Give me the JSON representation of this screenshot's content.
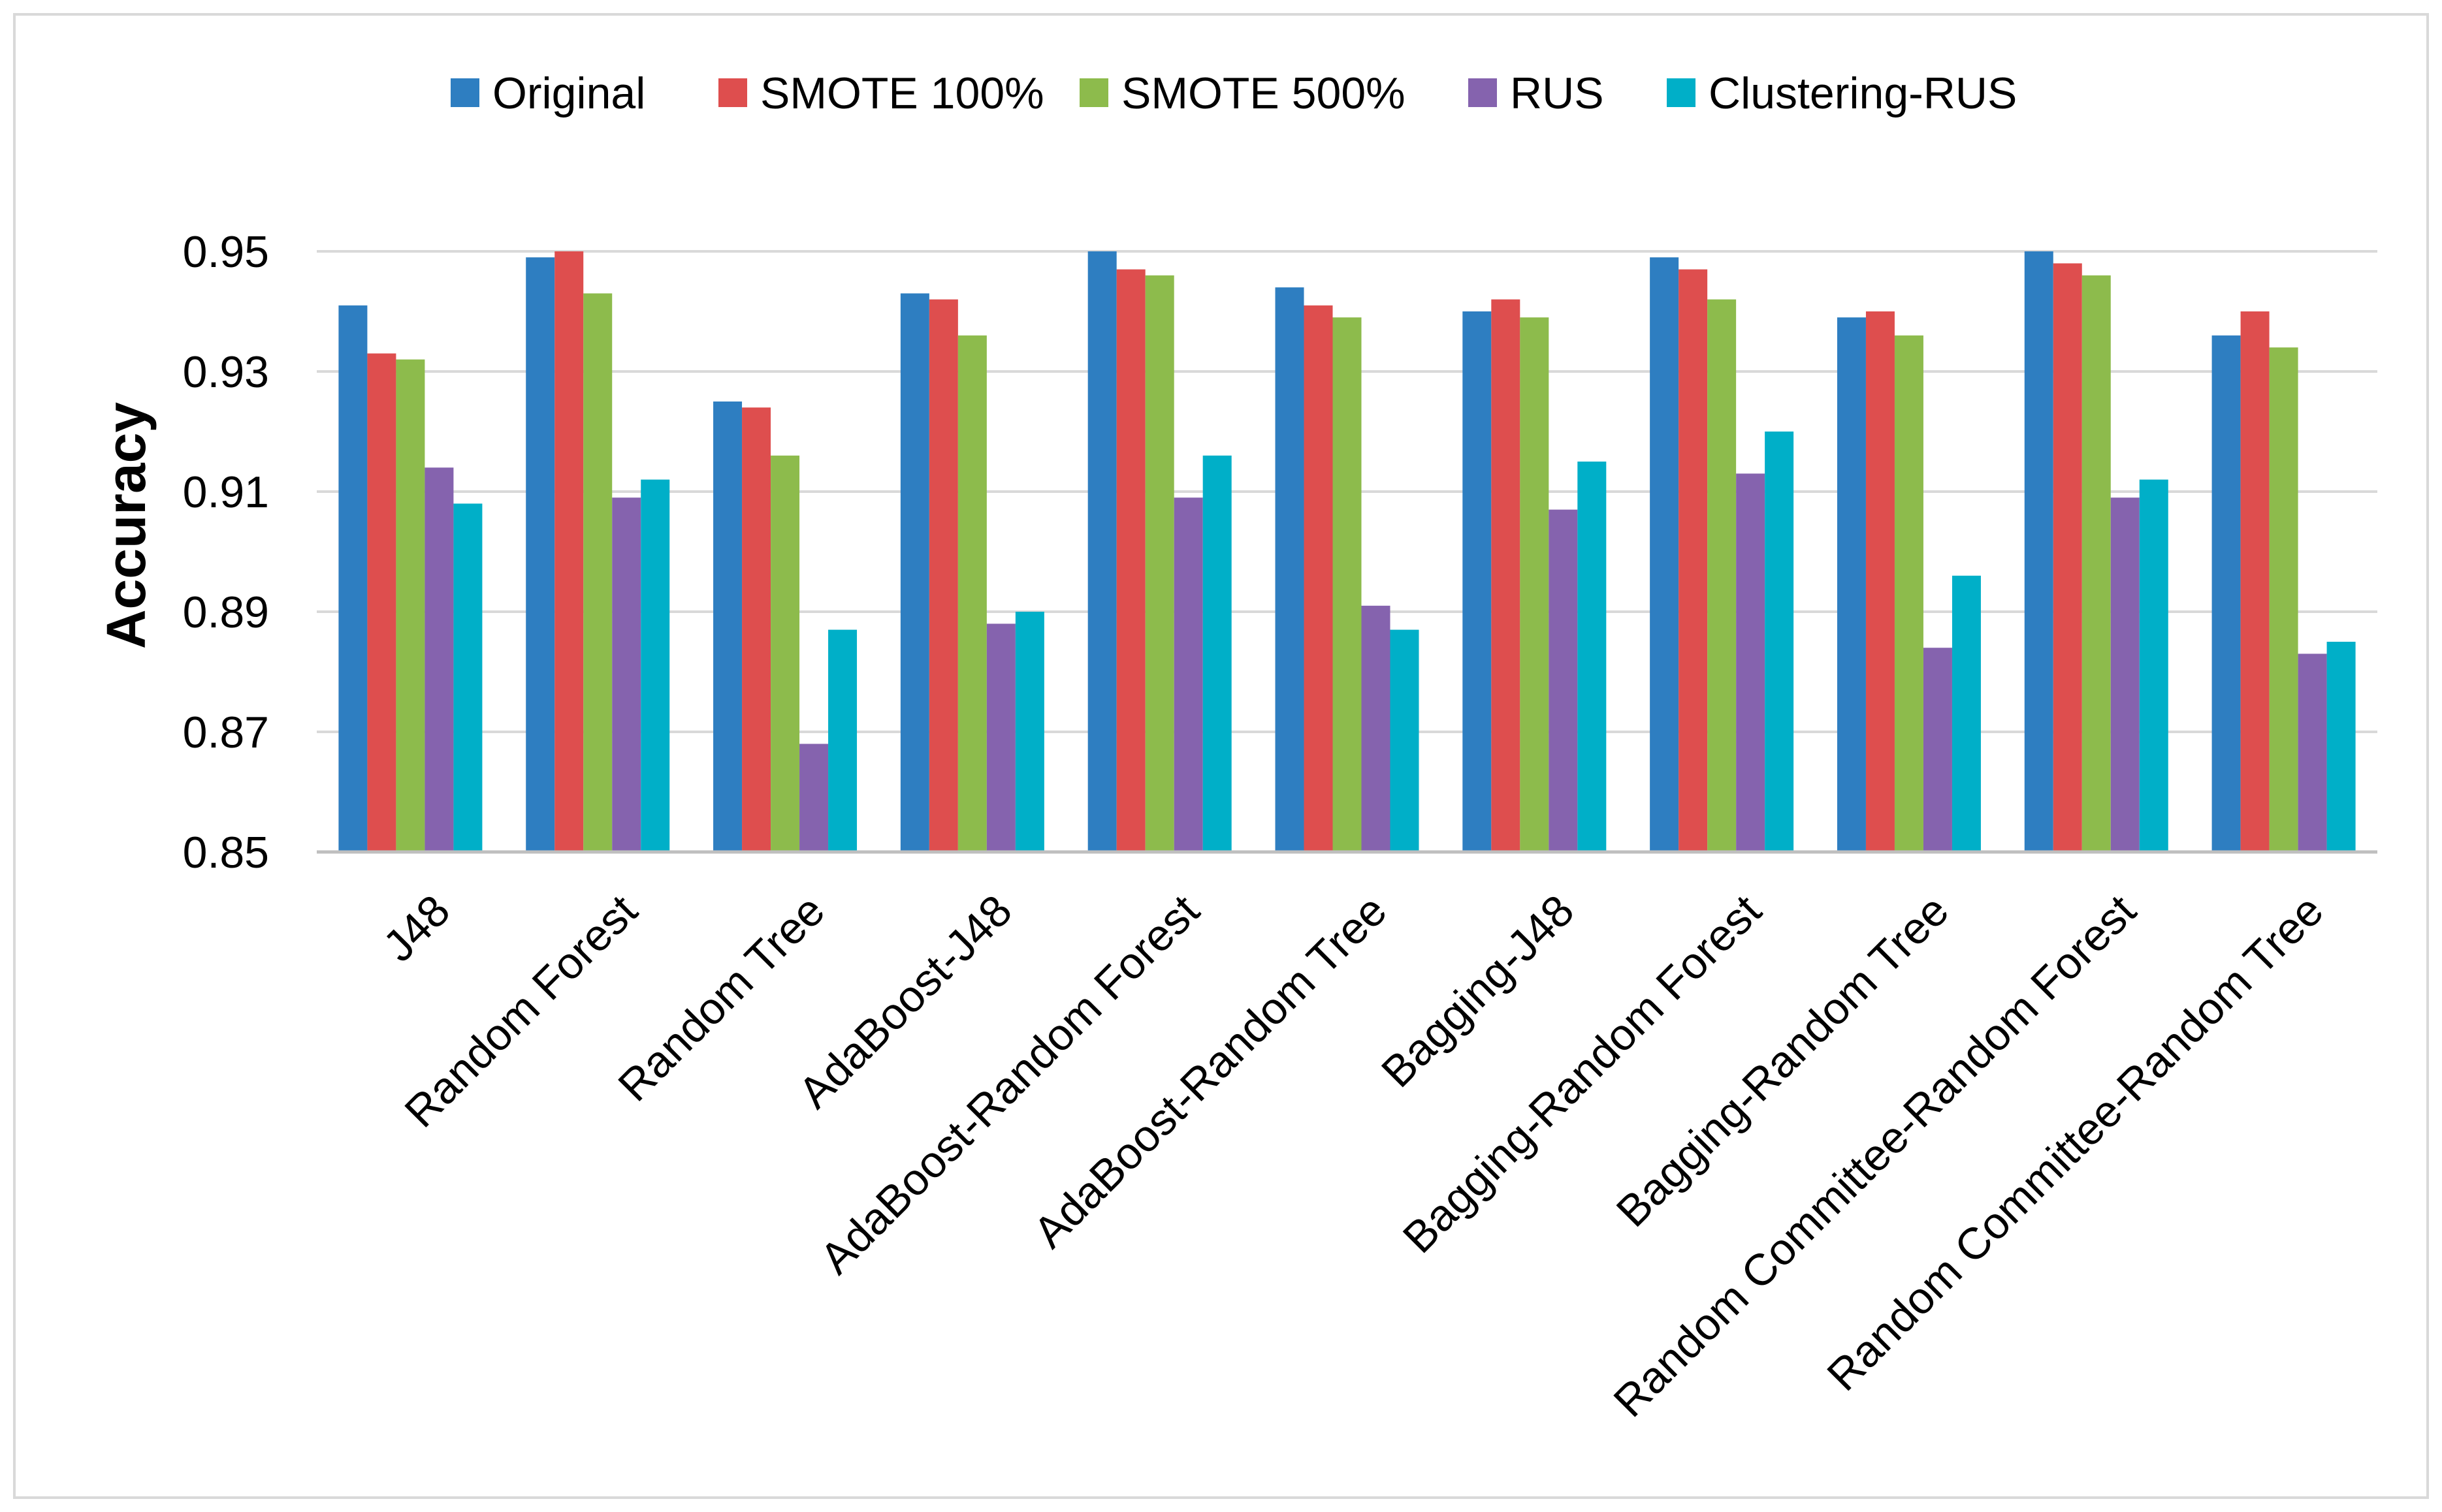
{
  "chart_data": {
    "type": "bar",
    "title": "",
    "xlabel": "",
    "ylabel": "Accuracy",
    "ylim": [
      0.85,
      0.95
    ],
    "yticks": [
      "0.85",
      "0.87",
      "0.89",
      "0.91",
      "0.93",
      "0.95"
    ],
    "grid": true,
    "legend_position": "top",
    "categories": [
      "J48",
      "Random Forest",
      "Random Tree",
      "AdaBoost-J48",
      "AdaBoost-Random Forest",
      "AdaBoost-Random Tree",
      "Bagging-J48",
      "Bagging-Random Forest",
      "Bagging-Random Tree",
      "Random Committee-Random Forest",
      "Random Committee-Random Tree"
    ],
    "series": [
      {
        "name": "Original",
        "color": "#2E7EC1",
        "values": [
          0.941,
          0.949,
          0.925,
          0.943,
          0.95,
          0.944,
          0.94,
          0.949,
          0.939,
          0.95,
          0.936
        ]
      },
      {
        "name": "SMOTE 100%",
        "color": "#DE4E4E",
        "values": [
          0.933,
          0.95,
          0.924,
          0.942,
          0.947,
          0.941,
          0.942,
          0.947,
          0.94,
          0.948,
          0.94
        ]
      },
      {
        "name": "SMOTE 500%",
        "color": "#8DBB4C",
        "values": [
          0.932,
          0.943,
          0.916,
          0.936,
          0.946,
          0.939,
          0.939,
          0.942,
          0.936,
          0.946,
          0.934
        ]
      },
      {
        "name": "RUS",
        "color": "#8563AE",
        "values": [
          0.914,
          0.909,
          0.868,
          0.888,
          0.909,
          0.891,
          0.907,
          0.913,
          0.884,
          0.909,
          0.883
        ]
      },
      {
        "name": "Clustering-RUS",
        "color": "#00AFC8",
        "values": [
          0.908,
          0.912,
          0.887,
          0.89,
          0.916,
          0.887,
          0.915,
          0.92,
          0.896,
          0.912,
          0.885
        ]
      }
    ]
  }
}
